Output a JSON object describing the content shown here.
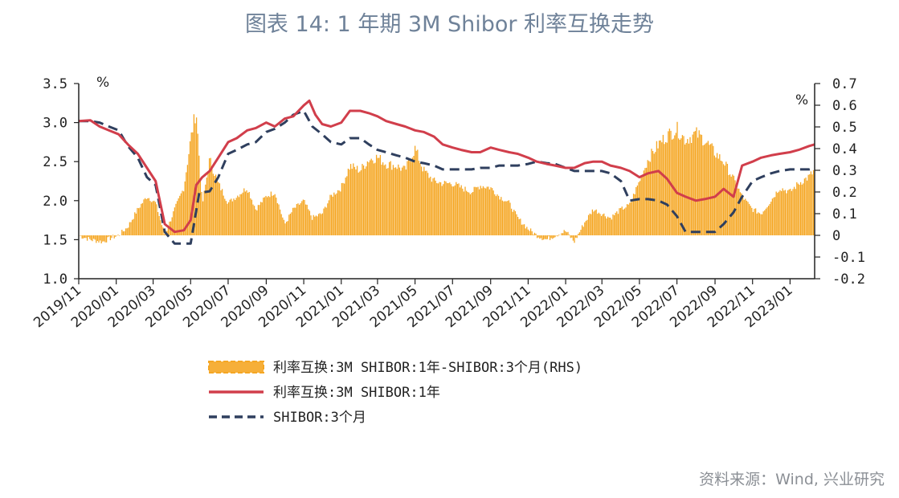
{
  "header": {
    "title": "图表 14: 1 年期 3M Shibor 利率互换走势",
    "source": "资料来源：Wind, 兴业研究"
  },
  "colors": {
    "spread": "#f5a623",
    "swap": "#d13e4b",
    "shibor": "#2f3f5e"
  },
  "chart_data": {
    "type": "line",
    "x_tick_labels": [
      "2019/11",
      "2020/01",
      "2020/03",
      "2020/05",
      "2020/07",
      "2020/09",
      "2020/11",
      "2021/01",
      "2021/03",
      "2021/05",
      "2021/07",
      "2021/09",
      "2021/11",
      "2022/01",
      "2022/03",
      "2022/05",
      "2022/07",
      "2022/09",
      "2022/11",
      "2023/01"
    ],
    "left_axis": {
      "unit": "%",
      "ylim": [
        1.0,
        3.5
      ],
      "ticks": [
        "1.0",
        "1.5",
        "2.0",
        "2.5",
        "3.0",
        "3.5"
      ]
    },
    "right_axis": {
      "unit": "%",
      "ylim": [
        -0.2,
        0.7
      ],
      "ticks": [
        "-0.2",
        "-0.1",
        "0",
        "0.1",
        "0.2",
        "0.3",
        "0.4",
        "0.5",
        "0.6",
        "0.7"
      ]
    },
    "legend_placement": "bottom-center",
    "series": [
      {
        "name": "利率互换:3M SHIBOR:1年-SHIBOR:3个月(RHS)",
        "style": "area-spread-rhs",
        "x": [
          "2019-11-01",
          "2019-11-20",
          "2019-12-10",
          "2019-12-25",
          "2020-01-05",
          "2020-01-20",
          "2020-02-05",
          "2020-02-20",
          "2020-03-05",
          "2020-03-20",
          "2020-04-05",
          "2020-04-20",
          "2020-05-01",
          "2020-05-10",
          "2020-05-20",
          "2020-06-01",
          "2020-06-15",
          "2020-07-01",
          "2020-07-15",
          "2020-08-01",
          "2020-08-15",
          "2020-09-01",
          "2020-09-15",
          "2020-10-01",
          "2020-10-15",
          "2020-11-01",
          "2020-11-15",
          "2020-12-01",
          "2020-12-15",
          "2021-01-01",
          "2021-01-15",
          "2021-02-01",
          "2021-02-15",
          "2021-03-01",
          "2021-03-15",
          "2021-04-01",
          "2021-04-15",
          "2021-05-01",
          "2021-05-15",
          "2021-06-01",
          "2021-06-15",
          "2021-07-01",
          "2021-07-15",
          "2021-08-01",
          "2021-08-15",
          "2021-09-01",
          "2021-09-15",
          "2021-10-01",
          "2021-10-15",
          "2021-11-01",
          "2021-11-15",
          "2021-12-01",
          "2021-12-15",
          "2022-01-01",
          "2022-01-15",
          "2022-02-01",
          "2022-02-15",
          "2022-03-01",
          "2022-03-15",
          "2022-04-01",
          "2022-04-15",
          "2022-05-01",
          "2022-05-15",
          "2022-06-01",
          "2022-06-15",
          "2022-07-01",
          "2022-07-15",
          "2022-08-01",
          "2022-08-15",
          "2022-09-01",
          "2022-09-15",
          "2022-10-01",
          "2022-10-15",
          "2022-11-01",
          "2022-11-15",
          "2022-12-01",
          "2022-12-15",
          "2023-01-01",
          "2023-01-15",
          "2023-02-01",
          "2023-02-10"
        ],
        "values": [
          0.0,
          -0.02,
          -0.03,
          -0.01,
          0.0,
          0.04,
          0.12,
          0.18,
          0.15,
          0.0,
          0.12,
          0.22,
          0.44,
          0.58,
          0.14,
          0.35,
          0.24,
          0.15,
          0.18,
          0.22,
          0.12,
          0.18,
          0.2,
          0.05,
          0.12,
          0.16,
          0.08,
          0.1,
          0.18,
          0.22,
          0.32,
          0.3,
          0.35,
          0.36,
          0.33,
          0.32,
          0.3,
          0.4,
          0.3,
          0.25,
          0.24,
          0.24,
          0.22,
          0.2,
          0.23,
          0.22,
          0.18,
          0.15,
          0.08,
          0.03,
          0.0,
          -0.02,
          0.0,
          0.02,
          -0.03,
          0.06,
          0.12,
          0.1,
          0.08,
          0.12,
          0.14,
          0.25,
          0.35,
          0.42,
          0.46,
          0.49,
          0.44,
          0.47,
          0.44,
          0.38,
          0.34,
          0.26,
          0.18,
          0.12,
          0.1,
          0.16,
          0.22,
          0.2,
          0.24,
          0.27,
          0.3
        ]
      },
      {
        "name": "利率互换:3M SHIBOR:1年",
        "style": "solid",
        "x": [
          "2019-11-01",
          "2019-11-20",
          "2019-12-05",
          "2019-12-20",
          "2020-01-05",
          "2020-01-20",
          "2020-02-05",
          "2020-02-20",
          "2020-03-05",
          "2020-03-20",
          "2020-04-05",
          "2020-04-20",
          "2020-05-01",
          "2020-05-10",
          "2020-05-20",
          "2020-06-01",
          "2020-06-15",
          "2020-07-01",
          "2020-07-15",
          "2020-08-01",
          "2020-08-15",
          "2020-09-01",
          "2020-09-15",
          "2020-10-01",
          "2020-10-15",
          "2020-11-01",
          "2020-11-10",
          "2020-11-20",
          "2020-12-01",
          "2020-12-15",
          "2021-01-01",
          "2021-01-15",
          "2021-02-01",
          "2021-02-15",
          "2021-03-01",
          "2021-03-15",
          "2021-04-01",
          "2021-04-15",
          "2021-05-01",
          "2021-05-15",
          "2021-06-01",
          "2021-06-15",
          "2021-07-01",
          "2021-07-15",
          "2021-08-01",
          "2021-08-15",
          "2021-09-01",
          "2021-09-15",
          "2021-10-01",
          "2021-10-15",
          "2021-11-01",
          "2021-11-15",
          "2021-12-01",
          "2021-12-15",
          "2022-01-01",
          "2022-01-15",
          "2022-02-01",
          "2022-02-15",
          "2022-03-01",
          "2022-03-15",
          "2022-04-01",
          "2022-04-15",
          "2022-05-01",
          "2022-05-15",
          "2022-06-01",
          "2022-06-15",
          "2022-07-01",
          "2022-07-15",
          "2022-08-01",
          "2022-08-15",
          "2022-09-01",
          "2022-09-15",
          "2022-10-01",
          "2022-10-15",
          "2022-11-01",
          "2022-11-15",
          "2022-12-01",
          "2022-12-15",
          "2023-01-01",
          "2023-01-15",
          "2023-02-01",
          "2023-02-10"
        ],
        "values": [
          3.02,
          3.03,
          2.95,
          2.9,
          2.85,
          2.72,
          2.6,
          2.42,
          2.25,
          1.7,
          1.6,
          1.62,
          1.75,
          2.2,
          2.3,
          2.38,
          2.55,
          2.75,
          2.8,
          2.9,
          2.93,
          3.0,
          2.95,
          3.05,
          3.08,
          3.22,
          3.28,
          3.1,
          2.98,
          2.95,
          3.0,
          3.15,
          3.15,
          3.12,
          3.08,
          3.02,
          2.98,
          2.95,
          2.9,
          2.88,
          2.82,
          2.72,
          2.68,
          2.65,
          2.62,
          2.62,
          2.68,
          2.65,
          2.62,
          2.6,
          2.55,
          2.5,
          2.47,
          2.45,
          2.42,
          2.42,
          2.48,
          2.5,
          2.5,
          2.45,
          2.42,
          2.38,
          2.3,
          2.35,
          2.38,
          2.28,
          2.1,
          2.05,
          2.0,
          2.02,
          2.05,
          2.15,
          2.05,
          2.45,
          2.5,
          2.55,
          2.58,
          2.6,
          2.62,
          2.65,
          2.7,
          2.72
        ]
      },
      {
        "name": "SHIBOR:3个月",
        "style": "dashed",
        "x": [
          "2019-11-01",
          "2019-11-20",
          "2019-12-05",
          "2019-12-20",
          "2020-01-05",
          "2020-01-20",
          "2020-02-05",
          "2020-02-20",
          "2020-03-05",
          "2020-03-20",
          "2020-04-05",
          "2020-04-20",
          "2020-05-01",
          "2020-05-15",
          "2020-06-01",
          "2020-06-15",
          "2020-07-01",
          "2020-07-15",
          "2020-08-01",
          "2020-08-15",
          "2020-09-01",
          "2020-09-15",
          "2020-10-01",
          "2020-10-15",
          "2020-11-01",
          "2020-11-15",
          "2020-12-01",
          "2020-12-15",
          "2021-01-01",
          "2021-01-15",
          "2021-02-01",
          "2021-02-15",
          "2021-03-01",
          "2021-03-15",
          "2021-04-01",
          "2021-04-15",
          "2021-05-01",
          "2021-05-15",
          "2021-06-01",
          "2021-06-15",
          "2021-07-01",
          "2021-07-15",
          "2021-08-01",
          "2021-08-15",
          "2021-09-01",
          "2021-09-15",
          "2021-10-01",
          "2021-10-15",
          "2021-11-01",
          "2021-11-15",
          "2021-12-01",
          "2021-12-15",
          "2022-01-01",
          "2022-01-15",
          "2022-02-01",
          "2022-02-15",
          "2022-03-01",
          "2022-03-15",
          "2022-04-01",
          "2022-04-15",
          "2022-05-01",
          "2022-05-15",
          "2022-06-01",
          "2022-06-15",
          "2022-07-01",
          "2022-07-15",
          "2022-08-01",
          "2022-08-15",
          "2022-09-01",
          "2022-09-15",
          "2022-10-01",
          "2022-10-15",
          "2022-11-01",
          "2022-11-15",
          "2022-12-01",
          "2022-12-15",
          "2023-01-01",
          "2023-01-15",
          "2023-02-01",
          "2023-02-10"
        ],
        "values": [
          3.02,
          3.02,
          3.0,
          2.95,
          2.9,
          2.7,
          2.55,
          2.3,
          2.2,
          1.6,
          1.45,
          1.45,
          1.45,
          2.1,
          2.12,
          2.3,
          2.6,
          2.65,
          2.72,
          2.75,
          2.88,
          2.92,
          3.0,
          3.1,
          3.15,
          2.95,
          2.85,
          2.75,
          2.72,
          2.8,
          2.8,
          2.72,
          2.65,
          2.62,
          2.58,
          2.55,
          2.5,
          2.48,
          2.45,
          2.4,
          2.4,
          2.4,
          2.4,
          2.42,
          2.42,
          2.45,
          2.45,
          2.45,
          2.47,
          2.5,
          2.48,
          2.47,
          2.42,
          2.38,
          2.38,
          2.38,
          2.38,
          2.35,
          2.25,
          2.0,
          2.02,
          2.02,
          2.0,
          1.95,
          1.8,
          1.6,
          1.6,
          1.6,
          1.6,
          1.7,
          1.85,
          2.05,
          2.25,
          2.3,
          2.35,
          2.38,
          2.4,
          2.4,
          2.4,
          2.42
        ]
      }
    ],
    "legend": [
      "利率互换:3M SHIBOR:1年-SHIBOR:3个月(RHS)",
      "利率互换:3M SHIBOR:1年",
      "SHIBOR:3个月"
    ]
  }
}
